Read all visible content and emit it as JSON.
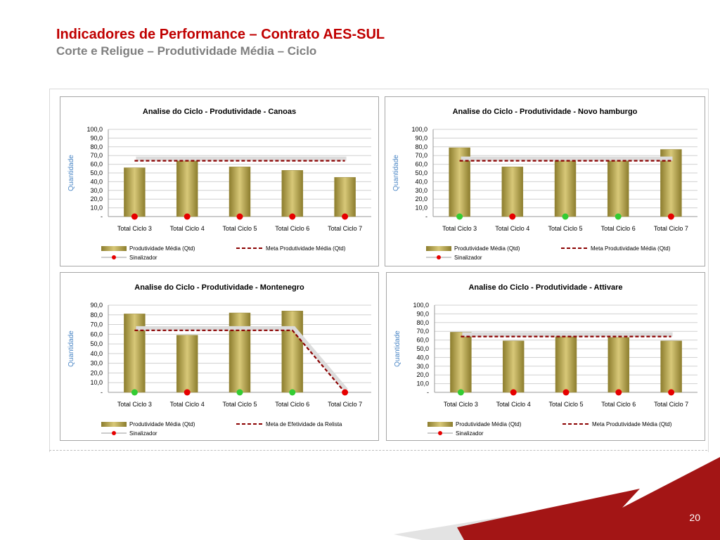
{
  "header": {
    "title": "Indicadores de Performance – Contrato AES-SUL",
    "subtitle": "Corte e Religue – Produtividade Média – Ciclo"
  },
  "footer": {
    "page_number": "20"
  },
  "colors": {
    "title": "#c00000",
    "subtitle": "#7f7f7f",
    "bar": "#bfae5a",
    "meta_line": "#8b0000",
    "signal_red": "#e60000",
    "signal_green": "#33cc33",
    "footer_red": "#a31515",
    "axis_label": "#4a86c5"
  },
  "chart_data": [
    {
      "type": "bar",
      "title": "Analise do Ciclo - Produtividade  - Canoas",
      "ylabel": "Quantidade",
      "ylim": [
        0,
        100
      ],
      "yticks": [
        "-",
        "10,0",
        "20,0",
        "30,0",
        "40,0",
        "50,0",
        "60,0",
        "70,0",
        "80,0",
        "90,0",
        "100,0"
      ],
      "categories": [
        "Total Ciclo 3",
        "Total Ciclo 4",
        "Total Ciclo 5",
        "Total Ciclo 6",
        "Total Ciclo 7"
      ],
      "series": [
        {
          "name": "Produtividade Média (Qtd)",
          "kind": "bar",
          "values": [
            56,
            64,
            57,
            53,
            45
          ]
        },
        {
          "name": "Meta Produtividade Média (Qtd)",
          "kind": "dashed-line",
          "values": [
            64,
            64,
            64,
            64,
            64
          ]
        },
        {
          "name": "Sinalizador",
          "kind": "marker",
          "values": [
            "red",
            "red",
            "red",
            "red",
            "red"
          ]
        }
      ]
    },
    {
      "type": "bar",
      "title": "Analise do Ciclo - Produtividade  - Novo hamburgo",
      "ylabel": "Quantidade",
      "ylim": [
        0,
        100
      ],
      "yticks": [
        "-",
        "10,0",
        "20,0",
        "30,0",
        "40,0",
        "50,0",
        "60,0",
        "70,0",
        "80,0",
        "90,0",
        "100,0"
      ],
      "categories": [
        "Total Ciclo 3",
        "Total Ciclo 4",
        "Total Ciclo 5",
        "Total Ciclo 6",
        "Total Ciclo 7"
      ],
      "series": [
        {
          "name": "Produtividade Média (Qtd)",
          "kind": "bar",
          "values": [
            79,
            57,
            64,
            65,
            77
          ]
        },
        {
          "name": "Meta Produtividade Média (Qtd)",
          "kind": "dashed-line",
          "values": [
            64,
            64,
            64,
            64,
            64
          ]
        },
        {
          "name": "Sinalizador",
          "kind": "marker",
          "values": [
            "green",
            "red",
            "green",
            "green",
            "red"
          ]
        }
      ]
    },
    {
      "type": "bar",
      "title": "Analise do Ciclo - Produtividade  - Montenegro",
      "ylabel": "Quantidade",
      "ylim": [
        0,
        90
      ],
      "yticks": [
        "-",
        "10,0",
        "20,0",
        "30,0",
        "40,0",
        "50,0",
        "60,0",
        "70,0",
        "80,0",
        "90,0"
      ],
      "categories": [
        "Total Ciclo 3",
        "Total Ciclo 4",
        "Total Ciclo 5",
        "Total Ciclo 6",
        "Total Ciclo 7"
      ],
      "series": [
        {
          "name": "Produtividade Média (Qtd)",
          "kind": "bar",
          "values": [
            81,
            59,
            82,
            84,
            0
          ]
        },
        {
          "name": "Meta de Efetividade da Relista",
          "kind": "dashed-line",
          "values": [
            64,
            64,
            64,
            64,
            0
          ]
        },
        {
          "name": "Sinalizador",
          "kind": "marker",
          "values": [
            "green",
            "red",
            "green",
            "green",
            "red"
          ]
        }
      ]
    },
    {
      "type": "bar",
      "title": "Analise do Ciclo - Produtividade  - Attivare",
      "ylabel": "Quantidade",
      "ylim": [
        0,
        100
      ],
      "yticks": [
        "-",
        "10,0",
        "20,0",
        "30,0",
        "40,0",
        "50,0",
        "60,0",
        "70,0",
        "80,0",
        "90,0",
        "100,0"
      ],
      "categories": [
        "Total Ciclo 3",
        "Total Ciclo 4",
        "Total Ciclo 5",
        "Total Ciclo 6",
        "Total Ciclo 7"
      ],
      "series": [
        {
          "name": "Produtividade Média (Qtd)",
          "kind": "bar",
          "values": [
            69,
            59,
            65,
            63,
            59
          ]
        },
        {
          "name": "Meta Produtividade Média (Qtd)",
          "kind": "dashed-line",
          "values": [
            64,
            64,
            64,
            64,
            64
          ]
        },
        {
          "name": "Sinalizador",
          "kind": "marker",
          "values": [
            "green",
            "red",
            "red",
            "red",
            "red"
          ]
        }
      ]
    }
  ]
}
